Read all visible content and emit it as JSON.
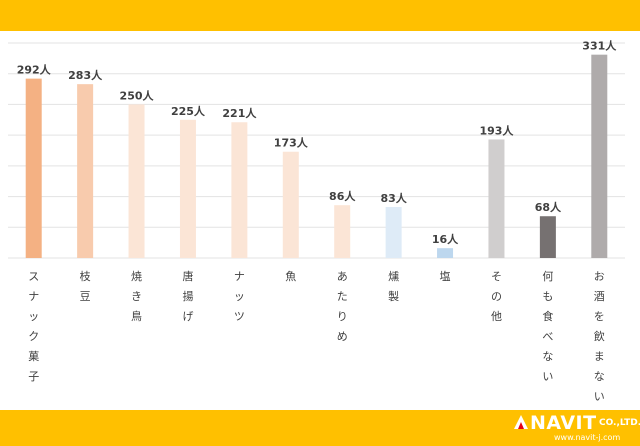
{
  "chart_data": {
    "type": "bar",
    "categories": [
      "スナック菓子",
      "枝豆",
      "焼き鳥",
      "唐揚げ",
      "ナッツ",
      "魚",
      "あたりめ",
      "燻製",
      "塩",
      "その他",
      "何も食べない",
      "お酒を飲まない"
    ],
    "values": [
      292,
      283,
      250,
      225,
      221,
      173,
      86,
      83,
      16,
      193,
      68,
      331
    ],
    "value_suffix": "人",
    "colors": [
      "#F4B183",
      "#F8CBAD",
      "#FBE5D6",
      "#FBE5D6",
      "#FBE5D6",
      "#FBE5D6",
      "#FBE5D6",
      "#DEEBF7",
      "#BDD7EE",
      "#D0CECE",
      "#767171",
      "#AFABAB"
    ],
    "ylim": [
      0,
      350
    ],
    "grid": true,
    "legend": "none"
  },
  "logo": {
    "name": "NAVIT",
    "suffix": "CO.,LTD.",
    "url": "www.navit-j.com"
  }
}
